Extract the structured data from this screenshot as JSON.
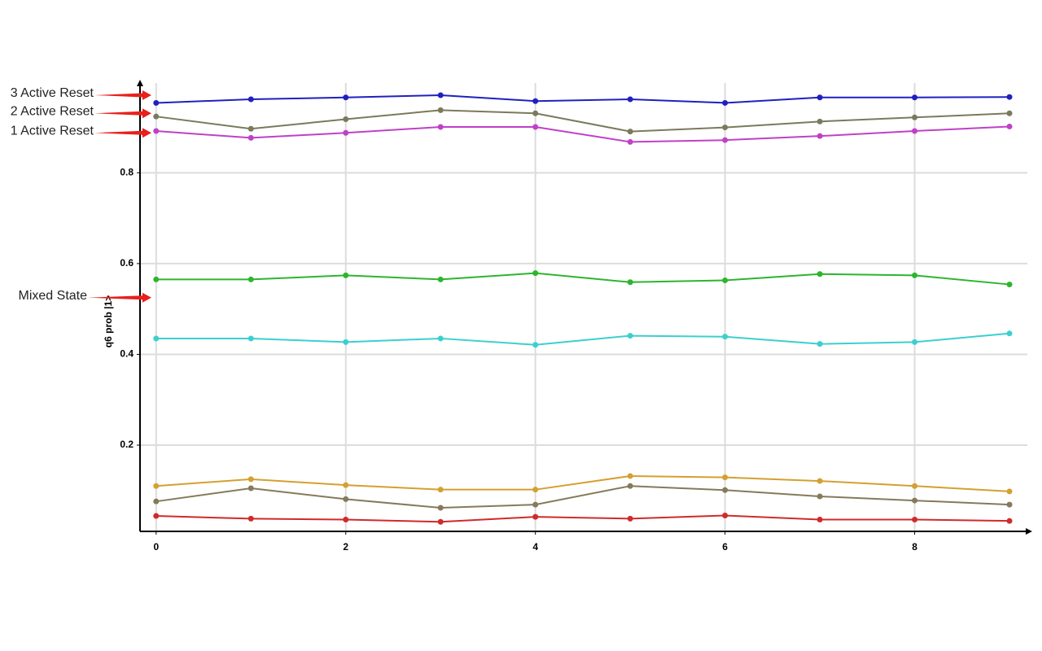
{
  "chart_data": {
    "type": "line",
    "ylabel": "q6 prob |1>",
    "x": [
      0,
      1,
      2,
      3,
      4,
      5,
      6,
      7,
      8,
      9
    ],
    "xlim": [
      -0.17,
      9.24
    ],
    "xticks": [
      0,
      2,
      4,
      6,
      8
    ],
    "ylim": [
      0.01,
      1.005
    ],
    "yticks": [
      0.2,
      0.4,
      0.6,
      0.8
    ],
    "grid": true,
    "series": [
      {
        "color": "#2020c0",
        "values": [
          0.954,
          0.962,
          0.966,
          0.971,
          0.958,
          0.962,
          0.954,
          0.966,
          0.966,
          0.967
        ]
      },
      {
        "color": "#7a7a5c",
        "values": [
          0.924,
          0.897,
          0.918,
          0.938,
          0.931,
          0.891,
          0.9,
          0.913,
          0.922,
          0.931
        ]
      },
      {
        "color": "#c040c8",
        "values": [
          0.892,
          0.877,
          0.888,
          0.901,
          0.901,
          0.868,
          0.872,
          0.881,
          0.892,
          0.902
        ]
      },
      {
        "color": "#2db52d",
        "values": [
          0.565,
          0.565,
          0.574,
          0.565,
          0.579,
          0.559,
          0.563,
          0.577,
          0.574,
          0.554
        ]
      },
      {
        "color": "#3ccfcf",
        "values": [
          0.435,
          0.435,
          0.427,
          0.435,
          0.421,
          0.441,
          0.439,
          0.423,
          0.427,
          0.446
        ]
      },
      {
        "color": "#d4a030",
        "values": [
          0.11,
          0.125,
          0.112,
          0.102,
          0.102,
          0.132,
          0.129,
          0.121,
          0.11,
          0.098
        ]
      },
      {
        "color": "#857a5a",
        "values": [
          0.076,
          0.105,
          0.081,
          0.062,
          0.069,
          0.11,
          0.101,
          0.087,
          0.078,
          0.069
        ]
      },
      {
        "color": "#d02a2a",
        "values": [
          0.044,
          0.038,
          0.036,
          0.031,
          0.042,
          0.038,
          0.045,
          0.036,
          0.036,
          0.033
        ]
      }
    ],
    "annotations": [
      {
        "text": "3 Active Reset",
        "y": 0.971
      },
      {
        "text": "2 Active Reset",
        "y": 0.931
      },
      {
        "text": "1 Active Reset",
        "y": 0.888
      },
      {
        "text": "Mixed State",
        "y": 0.525
      }
    ]
  }
}
